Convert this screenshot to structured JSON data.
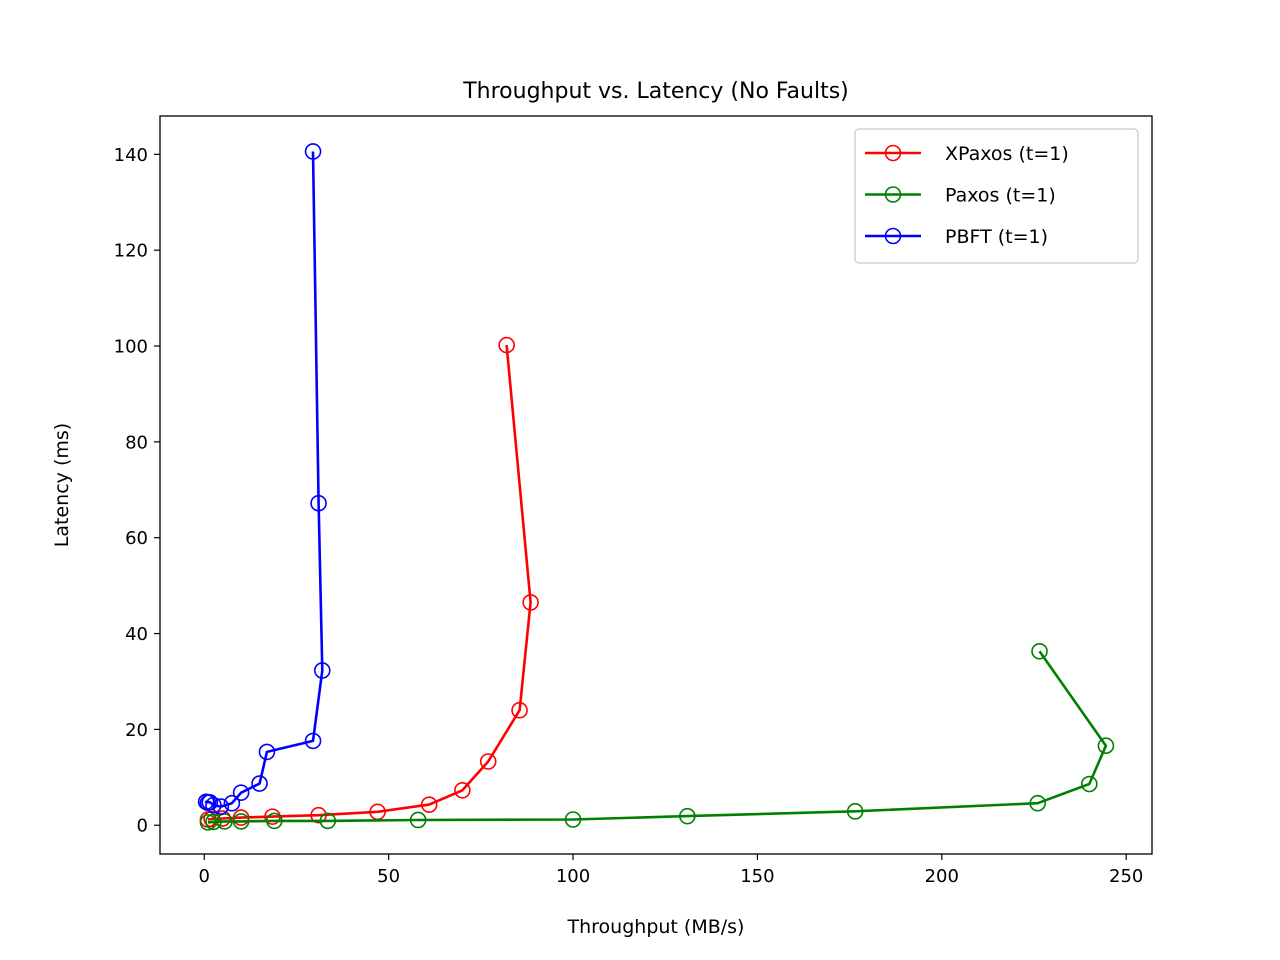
{
  "chart_data": {
    "type": "line",
    "title": "Throughput vs. Latency (No Faults)",
    "xlabel": "Throughput (MB/s)",
    "ylabel": "Latency (ms)",
    "xlim": [
      -12,
      257
    ],
    "ylim": [
      -6,
      148
    ],
    "x_ticks": [
      0,
      50,
      100,
      150,
      200,
      250
    ],
    "y_ticks": [
      0,
      20,
      40,
      60,
      80,
      100,
      120,
      140
    ],
    "grid": false,
    "legend_position": "top-right",
    "marker": "open-circle",
    "series": [
      {
        "name": "XPaxos (t=1)",
        "color": "#ff0000",
        "x": [
          1,
          2,
          5,
          10,
          18.5,
          31,
          47,
          61,
          70,
          77,
          85.5,
          88.5,
          82
        ],
        "y": [
          1.2,
          1.3,
          1.4,
          1.6,
          1.8,
          2.1,
          2.8,
          4.3,
          7.3,
          13.3,
          24,
          46.5,
          100.2
        ]
      },
      {
        "name": "Paxos (t=1)",
        "color": "#008000",
        "x": [
          1,
          2.5,
          5.5,
          10,
          19,
          33.5,
          58,
          100,
          131,
          176.5,
          226,
          240,
          244.5,
          226.5
        ],
        "y": [
          0.6,
          0.7,
          0.8,
          0.8,
          0.9,
          0.9,
          1.1,
          1.2,
          1.9,
          2.9,
          4.6,
          8.6,
          16.6,
          36.3
        ]
      },
      {
        "name": "PBFT (t=1)",
        "color": "#0000ff",
        "x": [
          1,
          0.5,
          1.5,
          2.5,
          4.5,
          7.5,
          10,
          15,
          17,
          29.5,
          32,
          31,
          29.5
        ],
        "y": [
          4.7,
          4.9,
          4.8,
          4.2,
          3.9,
          4.6,
          6.8,
          8.7,
          15.3,
          17.6,
          32.3,
          67.2,
          140.6
        ]
      }
    ]
  }
}
